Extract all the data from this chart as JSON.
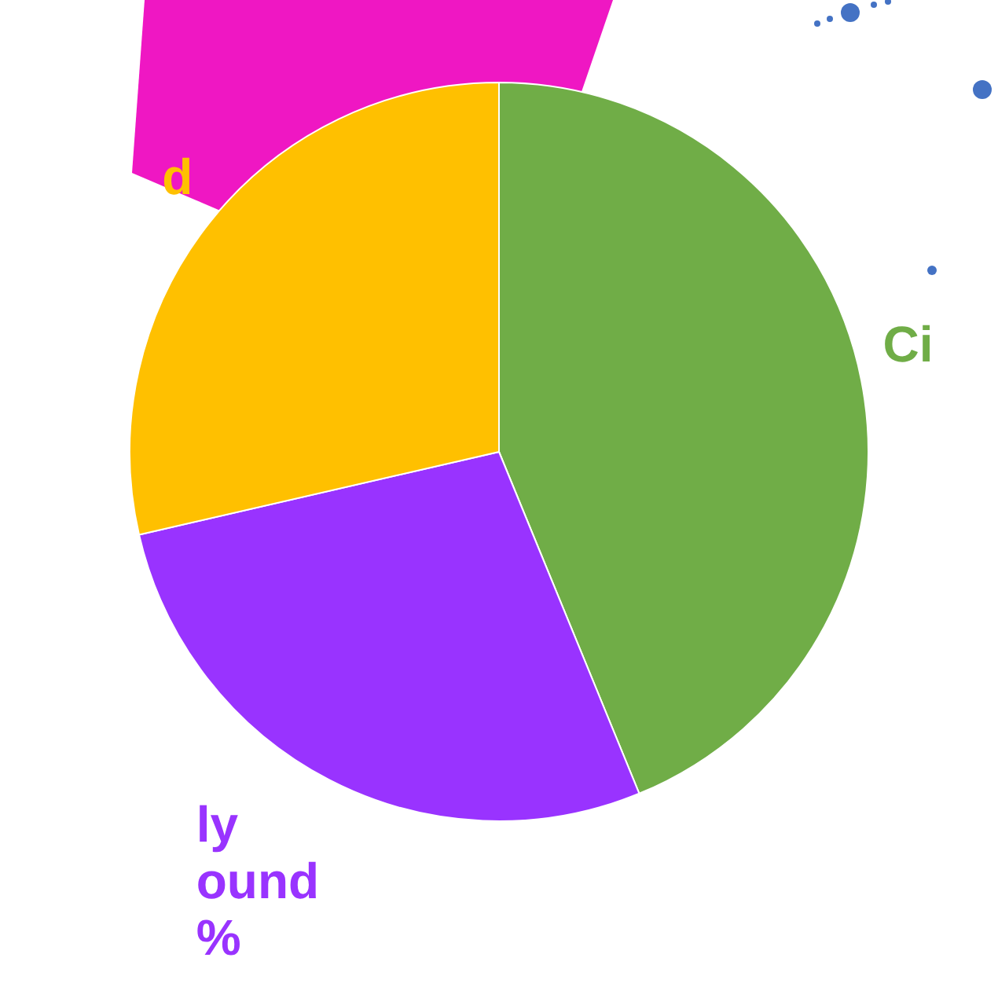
{
  "chart_data": {
    "type": "pie",
    "categories": [
      "Ci",
      "ly\nound\n%",
      "d"
    ],
    "values": [
      43.8,
      27.6,
      28.6
    ],
    "colors": [
      "#70ad47",
      "#9933ff",
      "#ffc000"
    ],
    "legend": false
  }
}
